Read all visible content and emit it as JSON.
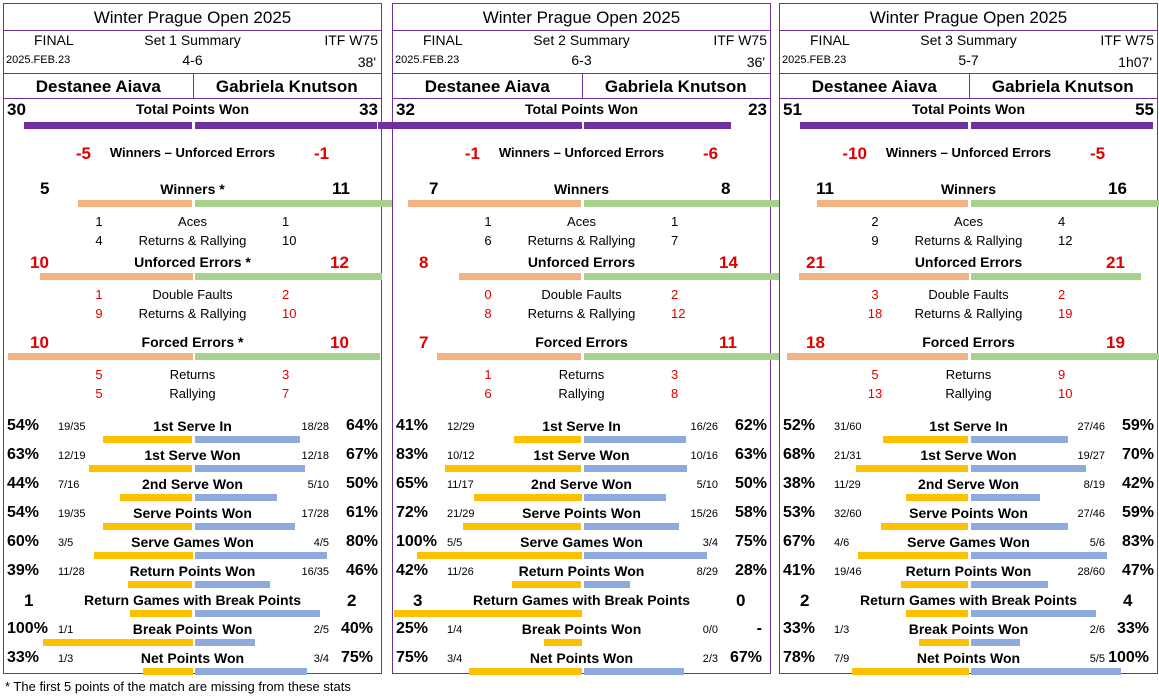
{
  "colors": {
    "border": "#7030a0",
    "total_bar": "#7030a0",
    "p1_bar": "#f4b183",
    "p2_bar": "#a9d18e",
    "serve_p1": "#ffc000",
    "serve_p2": "#8faadc",
    "error_text": "#e00000"
  },
  "labels": {
    "total_points_won": "Total Points Won",
    "winners_minus_ue": "Winners – Unforced Errors",
    "aces": "Aces",
    "returns_rallying": "Returns & Rallying",
    "double_faults": "Double Faults",
    "returns": "Returns",
    "rallying": "Rallying",
    "first_serve_in": "1st Serve In",
    "first_serve_won": "1st Serve Won",
    "second_serve_won": "2nd Serve Won",
    "serve_points_won": "Serve Points Won",
    "serve_games_won": "Serve Games Won",
    "return_points_won": "Return Points Won",
    "return_games_bp": "Return Games with Break Points",
    "break_points_won": "Break Points Won",
    "net_points_won": "Net Points Won"
  },
  "footnote": "* The first 5 points of the match are missing from these stats",
  "panels": [
    {
      "title": "Winter Prague Open 2025",
      "round": "FINAL",
      "summary": "Set 1 Summary",
      "category": "ITF W75",
      "date": "2025.FEB.23",
      "score": "4-6",
      "duration": "38'",
      "p1": "Destanee Aiava",
      "p2": "Gabriela Knutson",
      "total": [
        "30",
        "33"
      ],
      "total_frac": [
        0.48,
        0.52
      ],
      "w_ue": [
        "-5",
        "-1"
      ],
      "winners_label": "Winners *",
      "winners": [
        "5",
        "11"
      ],
      "winners_frac": [
        0.31,
        0.69
      ],
      "aces": [
        "1",
        "1"
      ],
      "wrr": [
        "4",
        "10"
      ],
      "ue_label": "Unforced Errors *",
      "ue": [
        "10",
        "12"
      ],
      "ue_frac": [
        0.45,
        0.55
      ],
      "df": [
        "1",
        "2"
      ],
      "uerr": [
        "9",
        "10"
      ],
      "fe_label": "Forced Errors *",
      "fe": [
        "10",
        "10"
      ],
      "fe_frac": [
        0.5,
        0.5
      ],
      "fe_ret": [
        "5",
        "3"
      ],
      "fe_ral": [
        "5",
        "7"
      ],
      "serve": [
        {
          "p1_pct": "54%",
          "p1_frac": "19/35",
          "p2_frac": "18/28",
          "p2_pct": "64%",
          "v": [
            0.54,
            0.64
          ]
        },
        {
          "p1_pct": "63%",
          "p1_frac": "12/19",
          "p2_frac": "12/18",
          "p2_pct": "67%",
          "v": [
            0.63,
            0.67
          ]
        },
        {
          "p1_pct": "44%",
          "p1_frac": "7/16",
          "p2_frac": "5/10",
          "p2_pct": "50%",
          "v": [
            0.44,
            0.5
          ]
        },
        {
          "p1_pct": "54%",
          "p1_frac": "19/35",
          "p2_frac": "17/28",
          "p2_pct": "61%",
          "v": [
            0.54,
            0.61
          ]
        },
        {
          "p1_pct": "60%",
          "p1_frac": "3/5",
          "p2_frac": "4/5",
          "p2_pct": "80%",
          "v": [
            0.6,
            0.8
          ]
        },
        {
          "p1_pct": "39%",
          "p1_frac": "11/28",
          "p2_frac": "16/35",
          "p2_pct": "46%",
          "v": [
            0.39,
            0.46
          ]
        }
      ],
      "rgbp": [
        "1",
        "2"
      ],
      "rgbp_frac": [
        0.33,
        0.67
      ],
      "bp": {
        "p1_pct": "100%",
        "p1_frac": "1/1",
        "p2_frac": "2/5",
        "p2_pct": "40%",
        "v": [
          1.0,
          0.4
        ]
      },
      "net": {
        "p1_pct": "33%",
        "p1_frac": "1/3",
        "p2_frac": "3/4",
        "p2_pct": "75%",
        "v": [
          0.33,
          0.75
        ]
      }
    },
    {
      "title": "Winter Prague Open 2025",
      "round": "FINAL",
      "summary": "Set 2 Summary",
      "category": "ITF W75",
      "date": "2025.FEB.23",
      "score": "6-3",
      "duration": "36'",
      "p1": "Destanee Aiava",
      "p2": "Gabriela Knutson",
      "total": [
        "32",
        "23"
      ],
      "total_frac": [
        0.58,
        0.42
      ],
      "w_ue": [
        "-1",
        "-6"
      ],
      "winners_label": "Winners",
      "winners": [
        "7",
        "8"
      ],
      "winners_frac": [
        0.47,
        0.53
      ],
      "aces": [
        "1",
        "1"
      ],
      "wrr": [
        "6",
        "7"
      ],
      "ue_label": "Unforced Errors",
      "ue": [
        "8",
        "14"
      ],
      "ue_frac": [
        0.36,
        0.64
      ],
      "df": [
        "0",
        "2"
      ],
      "uerr": [
        "8",
        "12"
      ],
      "fe_label": "Forced Errors",
      "fe": [
        "7",
        "11"
      ],
      "fe_frac": [
        0.39,
        0.61
      ],
      "fe_ret": [
        "1",
        "3"
      ],
      "fe_ral": [
        "6",
        "8"
      ],
      "serve": [
        {
          "p1_pct": "41%",
          "p1_frac": "12/29",
          "p2_frac": "16/26",
          "p2_pct": "62%",
          "v": [
            0.41,
            0.62
          ]
        },
        {
          "p1_pct": "83%",
          "p1_frac": "10/12",
          "p2_frac": "10/16",
          "p2_pct": "63%",
          "v": [
            0.83,
            0.63
          ]
        },
        {
          "p1_pct": "65%",
          "p1_frac": "11/17",
          "p2_frac": "5/10",
          "p2_pct": "50%",
          "v": [
            0.65,
            0.5
          ]
        },
        {
          "p1_pct": "72%",
          "p1_frac": "21/29",
          "p2_frac": "15/26",
          "p2_pct": "58%",
          "v": [
            0.72,
            0.58
          ]
        },
        {
          "p1_pct": "100%",
          "p1_frac": "5/5",
          "p2_frac": "3/4",
          "p2_pct": "75%",
          "v": [
            1.0,
            0.75
          ]
        },
        {
          "p1_pct": "42%",
          "p1_frac": "11/26",
          "p2_frac": "8/29",
          "p2_pct": "28%",
          "v": [
            0.42,
            0.28
          ]
        }
      ],
      "rgbp": [
        "3",
        "0"
      ],
      "rgbp_frac": [
        1.0,
        0.0
      ],
      "bp": {
        "p1_pct": "25%",
        "p1_frac": "1/4",
        "p2_frac": "0/0",
        "p2_pct": "-",
        "v": [
          0.25,
          0.0
        ]
      },
      "net": {
        "p1_pct": "75%",
        "p1_frac": "3/4",
        "p2_frac": "2/3",
        "p2_pct": "67%",
        "v": [
          0.75,
          0.67
        ]
      }
    },
    {
      "title": "Winter Prague Open 2025",
      "round": "FINAL",
      "summary": "Set 3 Summary",
      "category": "ITF W75",
      "date": "2025.FEB.23",
      "score": "5-7",
      "duration": "1h07'",
      "p1": "Destanee Aiava",
      "p2": "Gabriela Knutson",
      "total": [
        "51",
        "55"
      ],
      "total_frac": [
        0.48,
        0.52
      ],
      "w_ue": [
        "-10",
        "-5"
      ],
      "winners_label": "Winners",
      "winners": [
        "11",
        "16"
      ],
      "winners_frac": [
        0.41,
        0.59
      ],
      "aces": [
        "2",
        "4"
      ],
      "wrr": [
        "9",
        "12"
      ],
      "ue_label": "Unforced Errors",
      "ue": [
        "21",
        "21"
      ],
      "ue_frac": [
        0.5,
        0.5
      ],
      "df": [
        "3",
        "2"
      ],
      "uerr": [
        "18",
        "19"
      ],
      "fe_label": "Forced Errors",
      "fe": [
        "18",
        "19"
      ],
      "fe_frac": [
        0.49,
        0.51
      ],
      "fe_ret": [
        "5",
        "9"
      ],
      "fe_ral": [
        "13",
        "10"
      ],
      "serve": [
        {
          "p1_pct": "52%",
          "p1_frac": "31/60",
          "p2_frac": "27/46",
          "p2_pct": "59%",
          "v": [
            0.52,
            0.59
          ]
        },
        {
          "p1_pct": "68%",
          "p1_frac": "21/31",
          "p2_frac": "19/27",
          "p2_pct": "70%",
          "v": [
            0.68,
            0.7
          ]
        },
        {
          "p1_pct": "38%",
          "p1_frac": "11/29",
          "p2_frac": "8/19",
          "p2_pct": "42%",
          "v": [
            0.38,
            0.42
          ]
        },
        {
          "p1_pct": "53%",
          "p1_frac": "32/60",
          "p2_frac": "27/46",
          "p2_pct": "59%",
          "v": [
            0.53,
            0.59
          ]
        },
        {
          "p1_pct": "67%",
          "p1_frac": "4/6",
          "p2_frac": "5/6",
          "p2_pct": "83%",
          "v": [
            0.67,
            0.83
          ]
        },
        {
          "p1_pct": "41%",
          "p1_frac": "19/46",
          "p2_frac": "28/60",
          "p2_pct": "47%",
          "v": [
            0.41,
            0.47
          ]
        }
      ],
      "rgbp": [
        "2",
        "4"
      ],
      "rgbp_frac": [
        0.33,
        0.67
      ],
      "bp": {
        "p1_pct": "33%",
        "p1_frac": "1/3",
        "p2_frac": "2/6",
        "p2_pct": "33%",
        "v": [
          0.33,
          0.33
        ]
      },
      "net": {
        "p1_pct": "78%",
        "p1_frac": "7/9",
        "p2_frac": "5/5",
        "p2_pct": "100%",
        "v": [
          0.78,
          1.0
        ]
      }
    }
  ]
}
